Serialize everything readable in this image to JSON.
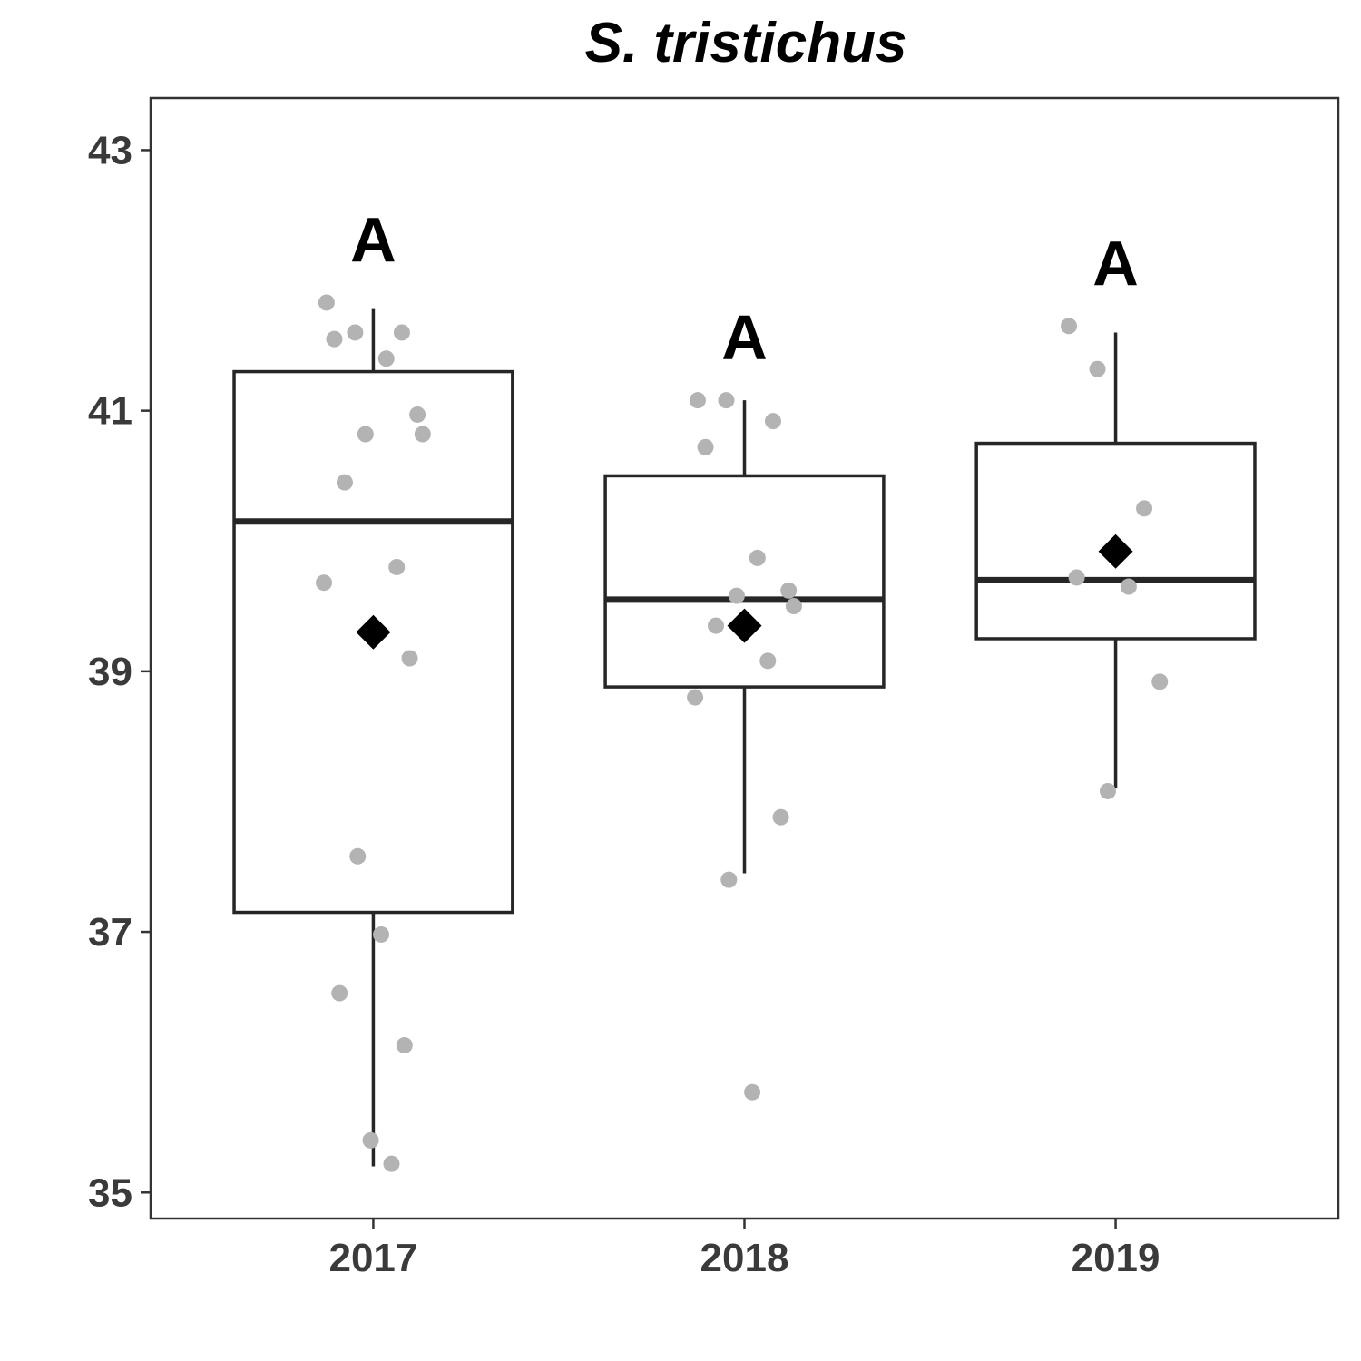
{
  "chart_data": {
    "type": "box",
    "title": "S. tristichus",
    "xlabel": "",
    "ylabel": "",
    "ylim": [
      34.8,
      43.4
    ],
    "yticks": [
      35,
      37,
      39,
      41,
      43
    ],
    "grid": false,
    "categories": [
      "2017",
      "2018",
      "2019"
    ],
    "colors": {
      "points": "#b3b3b3",
      "box": "#262626",
      "mean": "#000000",
      "frame": "#333333"
    },
    "groups": [
      {
        "category": "2017",
        "letter": "A",
        "whisker_low": 35.2,
        "q1": 37.15,
        "median": 40.15,
        "q3": 41.3,
        "whisker_high": 41.78,
        "mean": 39.3,
        "points": [
          41.83,
          41.6,
          41.6,
          41.55,
          41.4,
          40.97,
          40.82,
          40.82,
          40.45,
          39.8,
          39.68,
          39.1,
          37.58,
          36.98,
          36.53,
          36.13,
          35.4,
          35.22
        ]
      },
      {
        "category": "2018",
        "letter": "A",
        "whisker_low": 37.45,
        "q1": 38.88,
        "median": 39.55,
        "q3": 40.5,
        "whisker_high": 41.08,
        "mean": 39.35,
        "points": [
          41.08,
          41.08,
          40.92,
          40.72,
          39.87,
          39.62,
          39.58,
          39.5,
          39.35,
          39.08,
          38.8,
          37.88,
          37.4,
          35.77
        ]
      },
      {
        "category": "2019",
        "letter": "A",
        "whisker_low": 38.1,
        "q1": 39.25,
        "median": 39.7,
        "q3": 40.75,
        "whisker_high": 41.6,
        "mean": 39.92,
        "points": [
          41.65,
          41.32,
          40.25,
          39.72,
          39.65,
          38.92,
          38.08
        ]
      }
    ]
  }
}
